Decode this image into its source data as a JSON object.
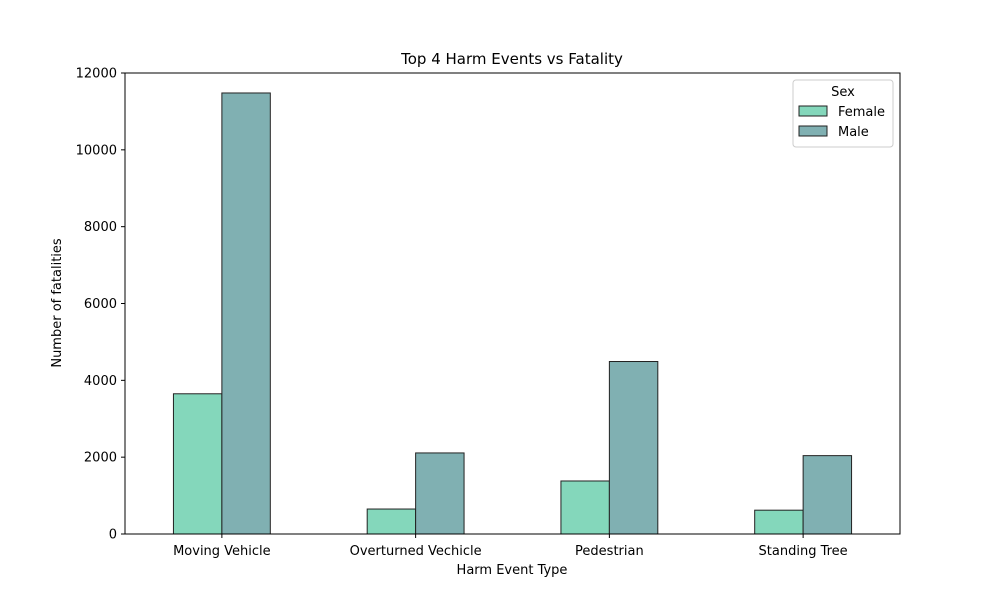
{
  "chart_data": {
    "type": "bar",
    "title": "Top 4 Harm Events vs Fatality",
    "xlabel": "Harm Event Type",
    "ylabel": "Number of fatalities",
    "categories": [
      "Moving Vehicle",
      "Overturned Vechicle",
      "Pedestrian",
      "Standing Tree"
    ],
    "series": [
      {
        "name": "Female",
        "values": [
          3650,
          650,
          1380,
          620
        ],
        "color": "#84d7bb"
      },
      {
        "name": "Male",
        "values": [
          11480,
          2110,
          4490,
          2040
        ],
        "color": "#80b0b2"
      }
    ],
    "ylim": [
      0,
      12000
    ],
    "yticks": [
      0,
      2000,
      4000,
      6000,
      8000,
      10000,
      12000
    ],
    "grid": false,
    "legend": {
      "title": "Sex",
      "placement": "top-right"
    }
  }
}
